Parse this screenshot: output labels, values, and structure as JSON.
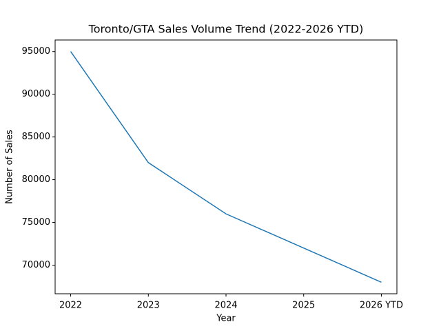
{
  "chart_data": {
    "type": "line",
    "title": "Toronto/GTA Sales Volume Trend (2022-2026 YTD)",
    "x_label": "Year",
    "y_label": "Number of Sales",
    "categories": [
      "2022",
      "2023",
      "2024",
      "2025",
      "2026 YTD"
    ],
    "series": [
      {
        "name": "Sales",
        "color": "#1f77b4",
        "values": [
          95000,
          82000,
          76000,
          72000,
          68000
        ]
      }
    ],
    "ylim": [
      66650,
      96350
    ],
    "yticks": [
      70000,
      75000,
      80000,
      85000,
      90000,
      95000
    ],
    "grid": false
  }
}
